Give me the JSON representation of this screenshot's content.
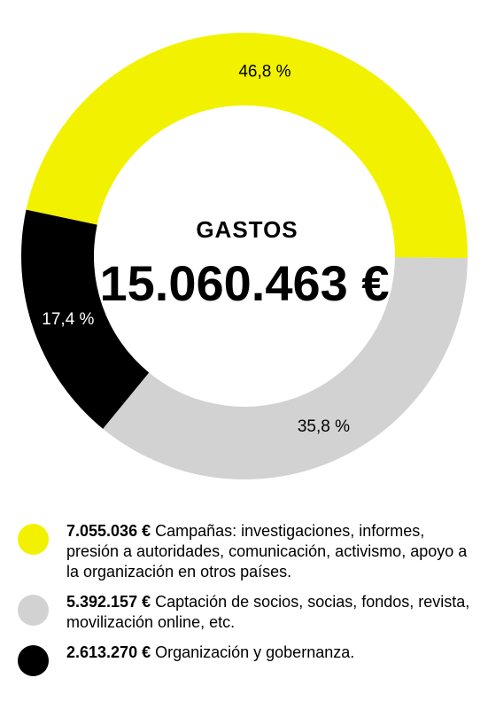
{
  "chart_data": {
    "type": "pie",
    "title": "GASTOS",
    "total": "15.060.463 €",
    "slices": [
      {
        "label": "46,8 %",
        "value": 46.8,
        "color": "#f2f200"
      },
      {
        "label": "35,8 %",
        "value": 35.8,
        "color": "#d2d2d2"
      },
      {
        "label": "17,4 %",
        "value": 17.4,
        "color": "#000000"
      }
    ]
  },
  "legend": [
    {
      "amount": "7.055.036 €",
      "text": " Campañas: investigaciones, informes, presión a autoridades, comunicación, activismo, apoyo a la organización en otros países.",
      "color": "#f2f200"
    },
    {
      "amount": "5.392.157 €",
      "text": " Captación de socios, socias, fondos, revista, movilización online, etc.",
      "color": "#d2d2d2"
    },
    {
      "amount": "2.613.270 €",
      "text": " Organización y gobernanza.",
      "color": "#000000"
    }
  ]
}
